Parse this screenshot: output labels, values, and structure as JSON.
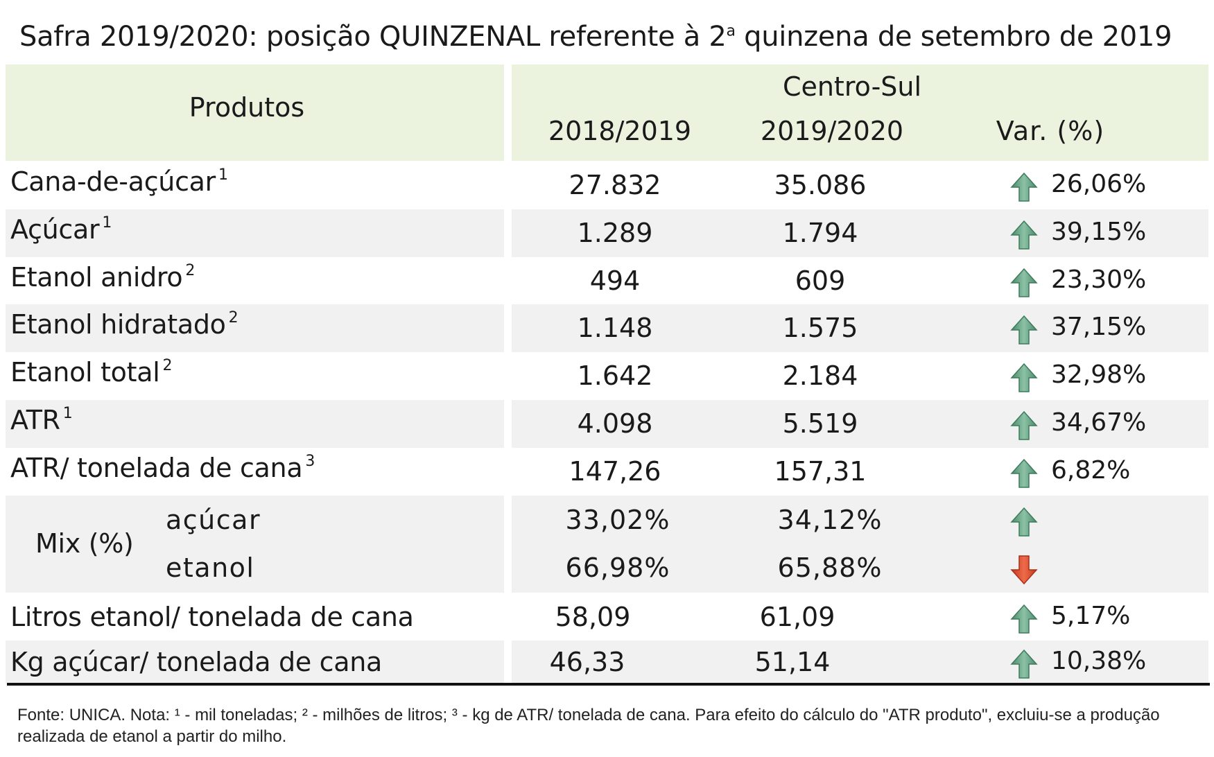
{
  "title": {
    "before_sup": "Safra 2019/2020: posição QUINZENAL referente à 2",
    "sup": "a",
    "after_sup": " quinzena de setembro de 2019"
  },
  "header": {
    "produtos": "Produtos",
    "region": "Centro-Sul",
    "col_2018": "2018/2019",
    "col_2019": "2019/2020",
    "col_var": "Var. (%)"
  },
  "rows": [
    {
      "label": "Cana-de-açúcar",
      "note": "1",
      "v2018": "27.832",
      "v2019": "35.086",
      "trend": "up",
      "var": "26,06%"
    },
    {
      "label": "Açúcar",
      "note": "1",
      "v2018": "1.289",
      "v2019": "1.794",
      "trend": "up",
      "var": "39,15%"
    },
    {
      "label": "Etanol anidro",
      "note": "2",
      "v2018": "494",
      "v2019": "609",
      "trend": "up",
      "var": "23,30%"
    },
    {
      "label": "Etanol hidratado",
      "note": "2",
      "v2018": "1.148",
      "v2019": "1.575",
      "trend": "up",
      "var": "37,15%"
    },
    {
      "label": "Etanol total",
      "note": "2",
      "v2018": "1.642",
      "v2019": "2.184",
      "trend": "up",
      "var": "32,98%"
    },
    {
      "label": "ATR",
      "note": "1",
      "v2018": "4.098",
      "v2019": "5.519",
      "trend": "up",
      "var": "34,67%"
    },
    {
      "label": "ATR/ tonelada de cana",
      "note": "3",
      "v2018": "147,26",
      "v2019": "157,31",
      "trend": "up",
      "var": "6,82%"
    }
  ],
  "mix": {
    "label": "Mix (%)",
    "acucar": {
      "label": "açúcar",
      "v2018": "33,02%",
      "v2019": "34,12%",
      "trend": "up"
    },
    "etanol": {
      "label": "etanol",
      "v2018": "66,98%",
      "v2019": "65,88%",
      "trend": "down"
    }
  },
  "rows_bottom": [
    {
      "label": "Litros etanol/ tonelada de cana",
      "v2018": "58,09",
      "v2019": "61,09",
      "trend": "up",
      "var": "5,17%"
    },
    {
      "label": "Kg açúcar/ tonelada de cana",
      "v2018": "46,33",
      "v2019": "51,14",
      "trend": "up",
      "var": "10,38%"
    }
  ],
  "footnote": "Fonte: UNICA. Nota: ¹ - mil toneladas; ² - milhões de litros; ³ - kg de ATR/ tonelada de cana. Para efeito do cálculo do \"ATR produto\", excluiu-se a produção realizada de etanol a partir do milho.",
  "colors": {
    "header_bg": "#ebf3df",
    "row_shade": "#f1f1f1",
    "arrow_up": "#5f9c7e",
    "arrow_down": "#d9472a"
  },
  "icons": {
    "up": "arrow-up-icon",
    "down": "arrow-down-icon"
  }
}
